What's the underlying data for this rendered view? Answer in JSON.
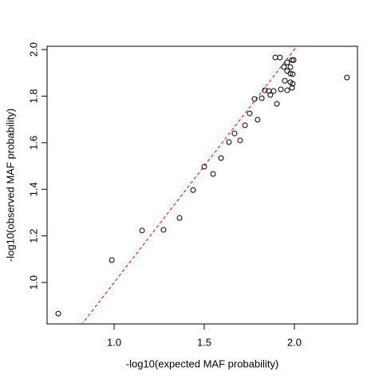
{
  "chart_data": {
    "type": "scatter",
    "xlabel": "-log10(expected MAF probability)",
    "ylabel": "-log10(observed MAF probability)",
    "x": [
      0.69,
      0.987,
      1.155,
      1.274,
      1.363,
      1.438,
      1.5,
      1.549,
      1.593,
      1.637,
      1.668,
      1.699,
      1.726,
      1.752,
      1.779,
      1.796,
      1.819,
      1.836,
      1.858,
      1.867,
      1.885,
      1.903,
      1.894,
      1.92,
      1.925,
      1.987,
      1.996,
      1.96,
      1.942,
      1.978,
      1.96,
      1.978,
      1.991,
      1.947,
      1.978,
      1.991,
      1.96,
      1.987,
      2.292
    ],
    "series": [
      {
        "color": "#000000",
        "values": [
          0.866,
          1.096,
          1.223,
          1.226,
          1.277,
          1.397,
          1.497,
          1.466,
          1.534,
          1.603,
          1.64,
          1.61,
          1.675,
          1.726,
          1.788,
          1.699,
          1.791,
          1.825,
          1.822,
          1.805,
          1.822,
          1.767,
          1.966,
          1.966,
          1.829,
          1.955,
          1.955,
          1.945,
          1.925,
          1.925,
          1.908,
          1.897,
          1.894,
          1.866,
          1.86,
          1.853,
          1.825,
          1.836,
          1.88
        ]
      }
    ],
    "reference_line": {
      "intercept": 0,
      "slope": 1,
      "color": "#ff0000"
    },
    "xlim": [
      0.628,
      2.35
    ],
    "ylim": [
      0.822,
      2.014
    ],
    "xticks": [
      {
        "value": 1,
        "label": "1.0"
      },
      {
        "value": 1.5,
        "label": "1.5"
      },
      {
        "value": 2,
        "label": "2.0"
      }
    ],
    "yticks": [
      {
        "value": 1,
        "label": "1.0"
      },
      {
        "value": 1.2,
        "label": "1.2"
      },
      {
        "value": 1.4,
        "label": "1.4"
      },
      {
        "value": 1.6,
        "label": "1.6"
      },
      {
        "value": 1.8,
        "label": "1.8"
      },
      {
        "value": 2,
        "label": "2.0"
      }
    ],
    "grid": false
  }
}
